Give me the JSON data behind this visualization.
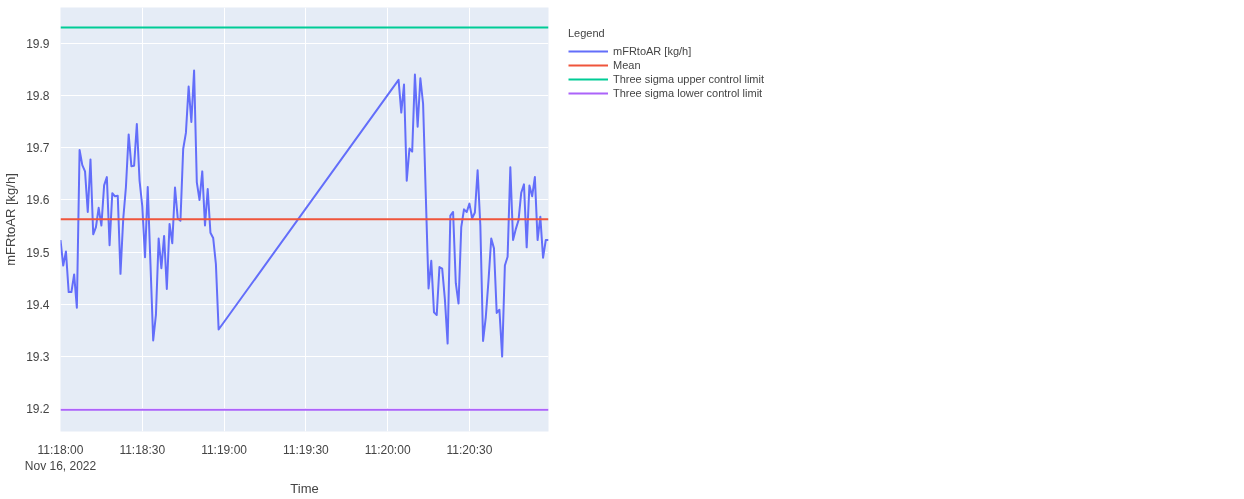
{
  "chart_data": {
    "type": "line",
    "xlabel": "Time",
    "ylabel": "mFRtoAR [kg/h]",
    "legend_title": "Legend",
    "xlim": [
      "2022-11-16T11:18:00",
      "2022-11-16T11:20:59"
    ],
    "xticks": [
      {
        "value": "2022-11-16T11:18:00",
        "label": "11:18:00\nNov 16, 2022"
      },
      {
        "value": "2022-11-16T11:18:30",
        "label": "11:18:30"
      },
      {
        "value": "2022-11-16T11:19:00",
        "label": "11:19:00"
      },
      {
        "value": "2022-11-16T11:19:30",
        "label": "11:19:30"
      },
      {
        "value": "2022-11-16T11:20:00",
        "label": "11:20:00"
      },
      {
        "value": "2022-11-16T11:20:30",
        "label": "11:20:30"
      }
    ],
    "ylim": [
      19.155,
      19.97
    ],
    "yticks": [
      19.2,
      19.3,
      19.4,
      19.5,
      19.6,
      19.7,
      19.8,
      19.9
    ],
    "grid": true,
    "legend": "right",
    "line_style": "solid",
    "marker": "none",
    "series": [
      {
        "name": "mFRtoAR [kg/h]",
        "color": "#636efa",
        "x": [
          "2022-11-16T11:18:00",
          "2022-11-16T11:18:01",
          "2022-11-16T11:18:02",
          "2022-11-16T11:18:03",
          "2022-11-16T11:18:04",
          "2022-11-16T11:18:05",
          "2022-11-16T11:18:06",
          "2022-11-16T11:18:07",
          "2022-11-16T11:18:08",
          "2022-11-16T11:18:09",
          "2022-11-16T11:18:10",
          "2022-11-16T11:18:11",
          "2022-11-16T11:18:12",
          "2022-11-16T11:18:13",
          "2022-11-16T11:18:14",
          "2022-11-16T11:18:15",
          "2022-11-16T11:18:16",
          "2022-11-16T11:18:17",
          "2022-11-16T11:18:18",
          "2022-11-16T11:18:19",
          "2022-11-16T11:18:20",
          "2022-11-16T11:18:21",
          "2022-11-16T11:18:22",
          "2022-11-16T11:18:23",
          "2022-11-16T11:18:24",
          "2022-11-16T11:18:25",
          "2022-11-16T11:18:26",
          "2022-11-16T11:18:27",
          "2022-11-16T11:18:28",
          "2022-11-16T11:18:29",
          "2022-11-16T11:18:30",
          "2022-11-16T11:18:31",
          "2022-11-16T11:18:32",
          "2022-11-16T11:18:33",
          "2022-11-16T11:18:34",
          "2022-11-16T11:18:35",
          "2022-11-16T11:18:36",
          "2022-11-16T11:18:37",
          "2022-11-16T11:18:38",
          "2022-11-16T11:18:39",
          "2022-11-16T11:18:40",
          "2022-11-16T11:18:41",
          "2022-11-16T11:18:42",
          "2022-11-16T11:18:43",
          "2022-11-16T11:18:44",
          "2022-11-16T11:18:45",
          "2022-11-16T11:18:46",
          "2022-11-16T11:18:47",
          "2022-11-16T11:18:48",
          "2022-11-16T11:18:49",
          "2022-11-16T11:18:50",
          "2022-11-16T11:18:51",
          "2022-11-16T11:18:52",
          "2022-11-16T11:18:53",
          "2022-11-16T11:18:54",
          "2022-11-16T11:18:55",
          "2022-11-16T11:18:56",
          "2022-11-16T11:18:57",
          "2022-11-16T11:18:58",
          "2022-11-16T11:20:04",
          "2022-11-16T11:20:05",
          "2022-11-16T11:20:06",
          "2022-11-16T11:20:07",
          "2022-11-16T11:20:08",
          "2022-11-16T11:20:09",
          "2022-11-16T11:20:10",
          "2022-11-16T11:20:11",
          "2022-11-16T11:20:12",
          "2022-11-16T11:20:13",
          "2022-11-16T11:20:15",
          "2022-11-16T11:20:16",
          "2022-11-16T11:20:17",
          "2022-11-16T11:20:18",
          "2022-11-16T11:20:19",
          "2022-11-16T11:20:20",
          "2022-11-16T11:20:21",
          "2022-11-16T11:20:22",
          "2022-11-16T11:20:23",
          "2022-11-16T11:20:24",
          "2022-11-16T11:20:25",
          "2022-11-16T11:20:26",
          "2022-11-16T11:20:27",
          "2022-11-16T11:20:28",
          "2022-11-16T11:20:29",
          "2022-11-16T11:20:30",
          "2022-11-16T11:20:31",
          "2022-11-16T11:20:32",
          "2022-11-16T11:20:33",
          "2022-11-16T11:20:34",
          "2022-11-16T11:20:35",
          "2022-11-16T11:20:36",
          "2022-11-16T11:20:37",
          "2022-11-16T11:20:38",
          "2022-11-16T11:20:39",
          "2022-11-16T11:20:40",
          "2022-11-16T11:20:41",
          "2022-11-16T11:20:42",
          "2022-11-16T11:20:43",
          "2022-11-16T11:20:44",
          "2022-11-16T11:20:45",
          "2022-11-16T11:20:46",
          "2022-11-16T11:20:47",
          "2022-11-16T11:20:48",
          "2022-11-16T11:20:49",
          "2022-11-16T11:20:50",
          "2022-11-16T11:20:51",
          "2022-11-16T11:20:52",
          "2022-11-16T11:20:53",
          "2022-11-16T11:20:54",
          "2022-11-16T11:20:55",
          "2022-11-16T11:20:56",
          "2022-11-16T11:20:57",
          "2022-11-16T11:20:58",
          "2022-11-16T11:20:59"
        ],
        "values": [
          19.523,
          19.474,
          19.501,
          19.423,
          19.423,
          19.457,
          19.393,
          19.696,
          19.667,
          19.655,
          19.577,
          19.678,
          19.534,
          19.548,
          19.585,
          19.551,
          19.628,
          19.644,
          19.513,
          19.613,
          19.607,
          19.608,
          19.458,
          19.563,
          19.625,
          19.726,
          19.665,
          19.666,
          19.746,
          19.637,
          19.588,
          19.49,
          19.625,
          19.477,
          19.33,
          19.379,
          19.526,
          19.469,
          19.531,
          19.429,
          19.554,
          19.517,
          19.624,
          19.565,
          19.56,
          19.698,
          19.729,
          19.818,
          19.75,
          19.849,
          19.634,
          19.6,
          19.655,
          19.551,
          19.621,
          19.537,
          19.527,
          19.477,
          19.351,
          19.831,
          19.768,
          19.822,
          19.637,
          19.699,
          19.693,
          19.841,
          19.741,
          19.834,
          19.785,
          19.43,
          19.483,
          19.384,
          19.379,
          19.471,
          19.468,
          19.409,
          19.324,
          19.57,
          19.577,
          19.44,
          19.401,
          19.548,
          19.582,
          19.577,
          19.593,
          19.565,
          19.576,
          19.657,
          19.551,
          19.329,
          19.375,
          19.446,
          19.526,
          19.507,
          19.383,
          19.389,
          19.299,
          19.474,
          19.491,
          19.663,
          19.523,
          19.544,
          19.561,
          19.614,
          19.63,
          19.509,
          19.628,
          19.607,
          19.644,
          19.523,
          19.568,
          19.489,
          19.523,
          19.523
        ]
      },
      {
        "name": "Mean",
        "color": "#ef553b",
        "x": [
          "2022-11-16T11:18:00",
          "2022-11-16T11:20:59"
        ],
        "values": [
          19.563,
          19.563
        ]
      },
      {
        "name": "Three sigma upper control limit",
        "color": "#00cc96",
        "x": [
          "2022-11-16T11:18:00",
          "2022-11-16T11:20:59"
        ],
        "values": [
          19.9315,
          19.9315
        ]
      },
      {
        "name": "Three sigma lower control limit",
        "color": "#ab63fa",
        "x": [
          "2022-11-16T11:18:00",
          "2022-11-16T11:20:59"
        ],
        "values": [
          19.197,
          19.197
        ]
      }
    ]
  }
}
